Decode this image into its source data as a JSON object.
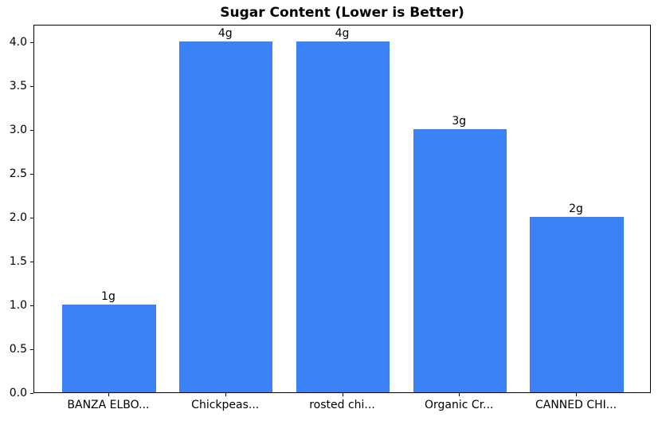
{
  "colors": {
    "bar": "#3b82f6",
    "axis": "#000000",
    "background": "#ffffff",
    "text": "#000000"
  },
  "chart_data": {
    "type": "bar",
    "title": "Sugar Content (Lower is Better)",
    "categories": [
      "BANZA ELBO...",
      "Chickpeas...",
      "rosted chi...",
      "Organic Cr...",
      "CANNED CHI..."
    ],
    "values": [
      1,
      4,
      4,
      3,
      2
    ],
    "bar_labels": [
      "1g",
      "4g",
      "4g",
      "3g",
      "2g"
    ],
    "xlabel": "",
    "ylabel": "",
    "ylim": [
      0,
      4.2
    ],
    "xlim": [
      -0.64,
      4.64
    ],
    "bar_width": 0.8,
    "yticks": [
      0.0,
      0.5,
      1.0,
      1.5,
      2.0,
      2.5,
      3.0,
      3.5,
      4.0
    ],
    "ytick_labels": [
      "0.0",
      "0.5",
      "1.0",
      "1.5",
      "2.0",
      "2.5",
      "3.0",
      "3.5",
      "4.0"
    ],
    "grid": false,
    "legend": null
  }
}
